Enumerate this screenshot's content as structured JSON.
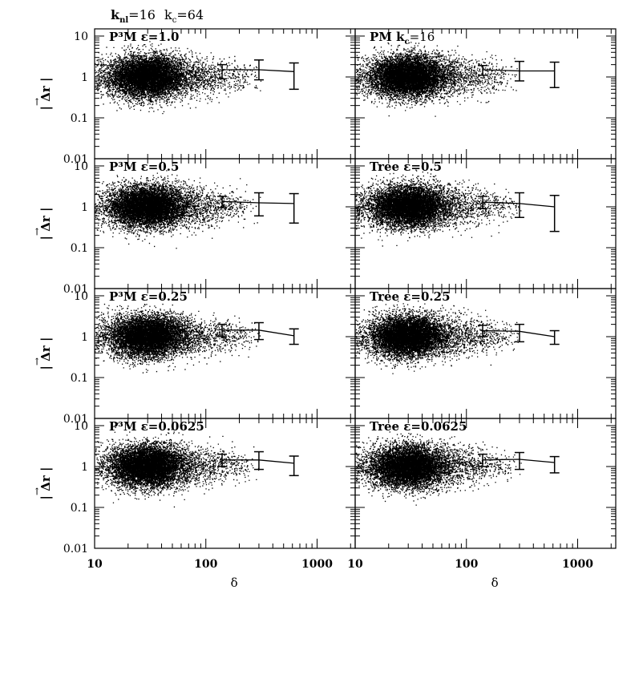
{
  "figure": {
    "header_main": "k",
    "header_main_sub": "nl",
    "header_main_value": "=16",
    "header_second": "k",
    "header_second_sub": "c",
    "header_second_value": "=64"
  },
  "chart_data": {
    "type": "scatter",
    "x_scale": "log",
    "y_scale": "log",
    "xlim": [
      10,
      2200
    ],
    "ylim": [
      0.01,
      15
    ],
    "xlabel": "δ",
    "ylabel": "| Δr |",
    "ylabel_arrow": "→",
    "x_ticks": [
      10,
      100,
      1000
    ],
    "x_tick_labels": [
      "10",
      "100",
      "1000"
    ],
    "y_ticks": [
      0.01,
      0.1,
      1,
      10
    ],
    "y_tick_labels": [
      "0.01",
      "0.1",
      "1",
      "10"
    ],
    "grid": false,
    "legend": "none",
    "point_color": "#000000",
    "panels": [
      {
        "label": "P³M  ε=1.0",
        "row": 0,
        "col": 0,
        "mean_curve": [
          {
            "x": 140,
            "y": 1.5
          },
          {
            "x": 300,
            "y": 1.5
          },
          {
            "x": 620,
            "y": 1.35
          }
        ],
        "error_bars": [
          {
            "x": 140,
            "y": 1.5,
            "low": 0.9,
            "high": 2.0
          },
          {
            "x": 300,
            "y": 1.5,
            "low": 0.85,
            "high": 2.6
          },
          {
            "x": 620,
            "y": 1.35,
            "low": 0.5,
            "high": 2.2
          }
        ]
      },
      {
        "label": "PM  k",
        "label_sub": "c",
        "label_tail": "=16",
        "row": 0,
        "col": 1,
        "mean_curve": [
          {
            "x": 140,
            "y": 1.5
          },
          {
            "x": 300,
            "y": 1.4
          },
          {
            "x": 620,
            "y": 1.4
          }
        ],
        "error_bars": [
          {
            "x": 140,
            "y": 1.5,
            "low": 1.1,
            "high": 1.9
          },
          {
            "x": 300,
            "y": 1.4,
            "low": 0.8,
            "high": 2.4
          },
          {
            "x": 620,
            "y": 1.4,
            "low": 0.55,
            "high": 2.3
          }
        ]
      },
      {
        "label": "P³M  ε=0.5",
        "row": 1,
        "col": 0,
        "mean_curve": [
          {
            "x": 140,
            "y": 1.35
          },
          {
            "x": 300,
            "y": 1.25
          },
          {
            "x": 620,
            "y": 1.2
          }
        ],
        "error_bars": [
          {
            "x": 140,
            "y": 1.35,
            "low": 0.95,
            "high": 1.8
          },
          {
            "x": 300,
            "y": 1.25,
            "low": 0.6,
            "high": 2.2
          },
          {
            "x": 620,
            "y": 1.2,
            "low": 0.4,
            "high": 2.1
          }
        ]
      },
      {
        "label": "Tree  ε=0.5",
        "row": 1,
        "col": 1,
        "mean_curve": [
          {
            "x": 140,
            "y": 1.3
          },
          {
            "x": 300,
            "y": 1.2
          },
          {
            "x": 620,
            "y": 1.0
          }
        ],
        "error_bars": [
          {
            "x": 140,
            "y": 1.3,
            "low": 0.9,
            "high": 1.8
          },
          {
            "x": 300,
            "y": 1.2,
            "low": 0.55,
            "high": 2.2
          },
          {
            "x": 620,
            "y": 1.0,
            "low": 0.25,
            "high": 1.9
          }
        ]
      },
      {
        "label": "P³M  ε=0.25",
        "row": 2,
        "col": 0,
        "mean_curve": [
          {
            "x": 140,
            "y": 1.45
          },
          {
            "x": 300,
            "y": 1.45
          },
          {
            "x": 620,
            "y": 1.05
          }
        ],
        "error_bars": [
          {
            "x": 140,
            "y": 1.45,
            "low": 1.0,
            "high": 2.0
          },
          {
            "x": 300,
            "y": 1.45,
            "low": 0.85,
            "high": 2.2
          },
          {
            "x": 620,
            "y": 1.05,
            "low": 0.65,
            "high": 1.55
          }
        ]
      },
      {
        "label": "Tree  ε=0.25",
        "row": 2,
        "col": 1,
        "mean_curve": [
          {
            "x": 140,
            "y": 1.4
          },
          {
            "x": 300,
            "y": 1.35
          },
          {
            "x": 620,
            "y": 1.0
          }
        ],
        "error_bars": [
          {
            "x": 140,
            "y": 1.4,
            "low": 1.0,
            "high": 1.9
          },
          {
            "x": 300,
            "y": 1.35,
            "low": 0.75,
            "high": 2.0
          },
          {
            "x": 620,
            "y": 1.0,
            "low": 0.65,
            "high": 1.4
          }
        ]
      },
      {
        "label": "P³M  ε=0.0625",
        "row": 3,
        "col": 0,
        "mean_curve": [
          {
            "x": 140,
            "y": 1.45
          },
          {
            "x": 300,
            "y": 1.45
          },
          {
            "x": 620,
            "y": 1.2
          }
        ],
        "error_bars": [
          {
            "x": 140,
            "y": 1.45,
            "low": 1.0,
            "high": 2.0
          },
          {
            "x": 300,
            "y": 1.45,
            "low": 0.85,
            "high": 2.3
          },
          {
            "x": 620,
            "y": 1.2,
            "low": 0.6,
            "high": 1.8
          }
        ]
      },
      {
        "label": "Tree  ε=0.0625",
        "row": 3,
        "col": 1,
        "mean_curve": [
          {
            "x": 140,
            "y": 1.45
          },
          {
            "x": 300,
            "y": 1.5
          },
          {
            "x": 620,
            "y": 1.25
          }
        ],
        "error_bars": [
          {
            "x": 140,
            "y": 1.45,
            "low": 1.0,
            "high": 2.0
          },
          {
            "x": 300,
            "y": 1.5,
            "low": 0.85,
            "high": 2.2
          },
          {
            "x": 620,
            "y": 1.25,
            "low": 0.7,
            "high": 1.75
          }
        ]
      }
    ]
  }
}
